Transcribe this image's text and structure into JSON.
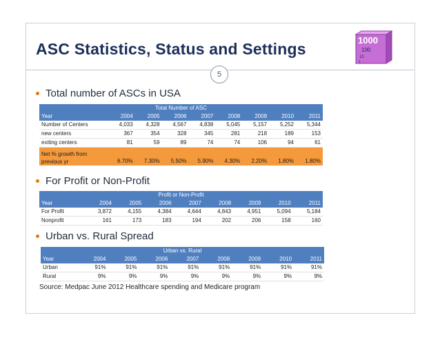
{
  "slide": {
    "title": "ASC Statistics, Status and Settings",
    "page_number": "5",
    "logo": {
      "text_big": "1000",
      "text_mid": "100",
      "text_small": "10",
      "text_tiny": "1"
    },
    "bullets": [
      "Total number of ASCs in USA",
      "For Profit or Non-Profit",
      "Urban vs. Rural Spread"
    ],
    "source": "Source: Medpac June 2012 Healthcare spending and Medicare program"
  },
  "table1": {
    "caption": "Total Number of ASC",
    "header": [
      "Year",
      "2004",
      "2005",
      "2006",
      "2007",
      "2008",
      "2009",
      "2010",
      "2011"
    ],
    "rows": [
      [
        "Number of Centers",
        "4,033",
        "4,328",
        "4,567",
        "4,838",
        "5,045",
        "5,157",
        "5,252",
        "5,344"
      ],
      [
        "new centers",
        "367",
        "354",
        "328",
        "345",
        "281",
        "218",
        "189",
        "153"
      ],
      [
        "exiting centers",
        "81",
        "59",
        "89",
        "74",
        "74",
        "106",
        "94",
        "61"
      ]
    ],
    "growth_row": {
      "label_line1": "Net % growth from",
      "label_line2": "previous yr",
      "values": [
        "6.70%",
        "7.30%",
        "5.50%",
        "5.90%",
        "4.30%",
        "2.20%",
        "1.80%",
        "1.80%"
      ]
    }
  },
  "table2": {
    "caption": "Profit or Non-Profit",
    "header": [
      "Year",
      "2004",
      "2005",
      "2006",
      "2007",
      "2008",
      "2009",
      "2010",
      "2011"
    ],
    "rows": [
      [
        "For Profit",
        "3,872",
        "4,155",
        "4,384",
        "4,644",
        "4,843",
        "4,951",
        "5,094",
        "5,184"
      ],
      [
        "Nonprofit",
        "161",
        "173",
        "183",
        "194",
        "202",
        "206",
        "158",
        "160"
      ]
    ]
  },
  "table3": {
    "caption": "Urban vs. Rural",
    "header": [
      "Year",
      "2004",
      "2005",
      "2006",
      "2007",
      "2008",
      "2009",
      "2010",
      "2011"
    ],
    "rows": [
      [
        "Urban",
        "91%",
        "91%",
        "91%",
        "91%",
        "91%",
        "91%",
        "91%",
        "91%"
      ],
      [
        "Rural",
        "9%",
        "9%",
        "9%",
        "9%",
        "9%",
        "9%",
        "9%",
        "9%"
      ]
    ]
  },
  "colors": {
    "title": "#1b2f5a",
    "bullet": "#e07a10",
    "table_header": "#4f7fbf",
    "growth_row": "#f59a3c"
  }
}
